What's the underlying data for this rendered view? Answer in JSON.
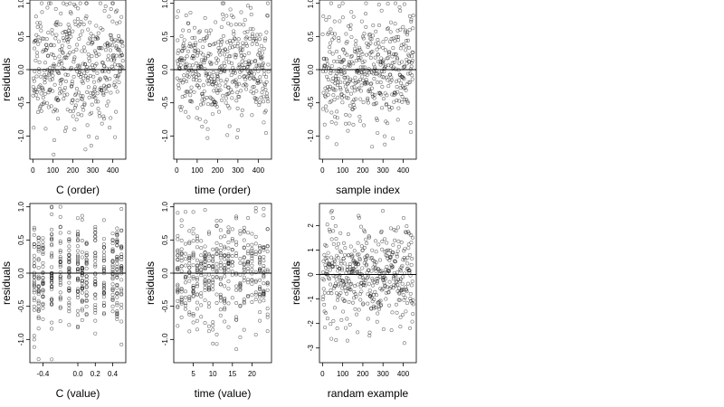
{
  "chart_data": [
    {
      "type": "scatter",
      "title": "",
      "xlabel": "C (order)",
      "ylabel": "residuals",
      "xlim": [
        -15,
        465
      ],
      "ylim": [
        -1.35,
        1.05
      ],
      "xticks": [
        0,
        100,
        200,
        300,
        400
      ],
      "xtick_labels": [
        "0",
        "100",
        "200",
        "300",
        "400"
      ],
      "yticks": [
        -1.0,
        -0.5,
        0.0,
        0.5,
        1.0
      ],
      "ytick_labels": [
        "-1.0",
        "-0.5",
        "0.0",
        "0.5",
        "1.0"
      ],
      "reference_line_y": 0,
      "grid": false,
      "marker": "open-circle",
      "point_count": 450,
      "x_range": [
        1,
        450
      ],
      "spread": 0.45,
      "y_min": -1.3,
      "y_max": 1.0,
      "mean_shift_left": 0.12,
      "mean_shift_right": 0.18,
      "seed": 11
    },
    {
      "type": "scatter",
      "title": "",
      "xlabel": "time (order)",
      "ylabel": "residuals",
      "xlim": [
        -15,
        465
      ],
      "ylim": [
        -1.35,
        1.05
      ],
      "xticks": [
        0,
        100,
        200,
        300,
        400
      ],
      "xtick_labels": [
        "0",
        "100",
        "200",
        "300",
        "400"
      ],
      "yticks": [
        -1.0,
        -0.5,
        0.0,
        0.5,
        1.0
      ],
      "ytick_labels": [
        "-1.0",
        "-0.5",
        "0.0",
        "0.5",
        "1.0"
      ],
      "reference_line_y": 0,
      "grid": false,
      "marker": "open-circle",
      "point_count": 450,
      "x_range": [
        1,
        450
      ],
      "spread": 0.4,
      "y_min": -1.3,
      "y_max": 1.0,
      "mean_shift_left": 0.0,
      "mean_shift_right": 0.0,
      "seed": 23
    },
    {
      "type": "scatter",
      "title": "",
      "xlabel": "sample index",
      "ylabel": "residuals",
      "xlim": [
        -15,
        465
      ],
      "ylim": [
        -1.35,
        1.05
      ],
      "xticks": [
        0,
        100,
        200,
        300,
        400
      ],
      "xtick_labels": [
        "0",
        "100",
        "200",
        "300",
        "400"
      ],
      "yticks": [
        -1.0,
        -0.5,
        0.0,
        0.5,
        1.0
      ],
      "ytick_labels": [
        "-1.0",
        "-0.5",
        "0.0",
        "0.5",
        "1.0"
      ],
      "reference_line_y": 0,
      "grid": false,
      "marker": "open-circle",
      "point_count": 450,
      "x_range": [
        1,
        450
      ],
      "spread": 0.42,
      "y_min": -1.3,
      "y_max": 1.0,
      "mean_shift_left": 0.05,
      "mean_shift_right": 0.1,
      "seed": 37
    },
    {
      "type": "scatter",
      "title": "",
      "xlabel": "C (value)",
      "ylabel": "residuals",
      "xlim": [
        -0.55,
        0.55
      ],
      "ylim": [
        -1.35,
        1.05
      ],
      "xticks": [
        -0.4,
        0.0,
        0.2,
        0.4
      ],
      "xtick_labels": [
        "-0.4",
        "0.0",
        "0.2",
        "0.4"
      ],
      "yticks": [
        -1.0,
        -0.5,
        0.0,
        0.5,
        1.0
      ],
      "ytick_labels": [
        "-1.0",
        "-0.5",
        "0.0",
        "0.5",
        "1.0"
      ],
      "reference_line_y": 0,
      "grid": false,
      "marker": "open-circle",
      "point_count": 450,
      "x_levels": [
        -0.5,
        -0.45,
        -0.4,
        -0.3,
        -0.2,
        -0.1,
        0.0,
        0.05,
        0.1,
        0.2,
        0.3,
        0.4,
        0.45,
        0.5
      ],
      "spread": 0.42,
      "y_min": -1.3,
      "y_max": 1.0,
      "seed": 41
    },
    {
      "type": "scatter",
      "title": "",
      "xlabel": "time (value)",
      "ylabel": "residuals",
      "xlim": [
        0,
        25
      ],
      "ylim": [
        -1.35,
        1.05
      ],
      "xticks": [
        5,
        10,
        15,
        20
      ],
      "xtick_labels": [
        "5",
        "10",
        "15",
        "20"
      ],
      "yticks": [
        -1.0,
        -0.5,
        0.0,
        0.5,
        1.0
      ],
      "ytick_labels": [
        "-1.0",
        "-0.5",
        "0.0",
        "0.5",
        "1.0"
      ],
      "reference_line_y": 0,
      "grid": false,
      "marker": "open-circle",
      "point_count": 450,
      "x_levels": [
        1,
        2,
        3,
        4,
        5,
        6,
        7,
        8,
        9,
        10,
        11,
        12,
        13,
        14,
        15,
        16,
        17,
        18,
        19,
        20,
        21,
        22,
        23,
        24
      ],
      "spread": 0.4,
      "y_min": -1.3,
      "y_max": 1.0,
      "seed": 53
    },
    {
      "type": "scatter",
      "title": "",
      "xlabel": "randam example",
      "ylabel": "residuals",
      "xlim": [
        -15,
        465
      ],
      "ylim": [
        -3.6,
        2.9
      ],
      "xticks": [
        0,
        100,
        200,
        300,
        400
      ],
      "xtick_labels": [
        "0",
        "100",
        "200",
        "300",
        "400"
      ],
      "yticks": [
        -3,
        -2,
        -1,
        0,
        1,
        2
      ],
      "ytick_labels": [
        "-3",
        "-2",
        "-1",
        "0",
        "1",
        "2"
      ],
      "reference_line_y": 0,
      "grid": false,
      "marker": "open-circle",
      "point_count": 450,
      "x_range": [
        1,
        450
      ],
      "spread": 1.0,
      "y_min": -3.3,
      "y_max": 2.6,
      "mean_shift_left": 0.0,
      "mean_shift_right": 0.0,
      "seed": 67
    }
  ]
}
